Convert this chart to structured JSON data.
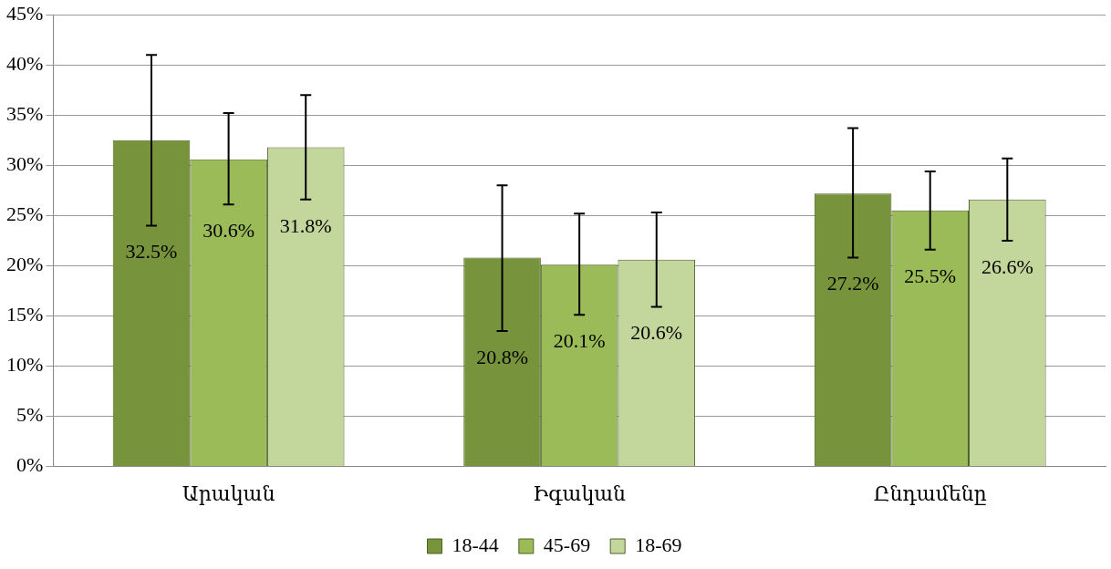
{
  "chart_data": {
    "type": "bar",
    "categories": [
      "Արական",
      "Իգական",
      "Ընդամենը"
    ],
    "series": [
      {
        "name": "18-44",
        "color": "#77933c",
        "values": [
          32.5,
          20.8,
          27.2
        ],
        "errors": [
          [
            24.0,
            41.0
          ],
          [
            13.5,
            28.0
          ],
          [
            20.8,
            33.7
          ]
        ],
        "value_labels": [
          "32.5%",
          "20.8%",
          "27.2%"
        ]
      },
      {
        "name": "45-69",
        "color": "#9bbb59",
        "values": [
          30.6,
          20.1,
          25.5
        ],
        "errors": [
          [
            26.1,
            35.2
          ],
          [
            15.1,
            25.2
          ],
          [
            21.6,
            29.4
          ]
        ],
        "value_labels": [
          "30.6%",
          "20.1%",
          "25.5%"
        ]
      },
      {
        "name": "18-69",
        "color": "#c3d69b",
        "values": [
          31.8,
          20.6,
          26.6
        ],
        "errors": [
          [
            26.6,
            37.0
          ],
          [
            15.9,
            25.3
          ],
          [
            22.5,
            30.7
          ]
        ],
        "value_labels": [
          "31.8%",
          "20.6%",
          "26.6%"
        ]
      }
    ],
    "ylim": [
      0,
      45
    ],
    "yticks": [
      {
        "value": 0,
        "label": "0%"
      },
      {
        "value": 5,
        "label": "5%"
      },
      {
        "value": 10,
        "label": "10%"
      },
      {
        "value": 15,
        "label": "15%"
      },
      {
        "value": 20,
        "label": "20%"
      },
      {
        "value": 25,
        "label": "25%"
      },
      {
        "value": 30,
        "label": "30%"
      },
      {
        "value": 35,
        "label": "35%"
      },
      {
        "value": 40,
        "label": "40%"
      },
      {
        "value": 45,
        "label": "45%"
      }
    ],
    "grid": "y",
    "legend": "bottom"
  }
}
